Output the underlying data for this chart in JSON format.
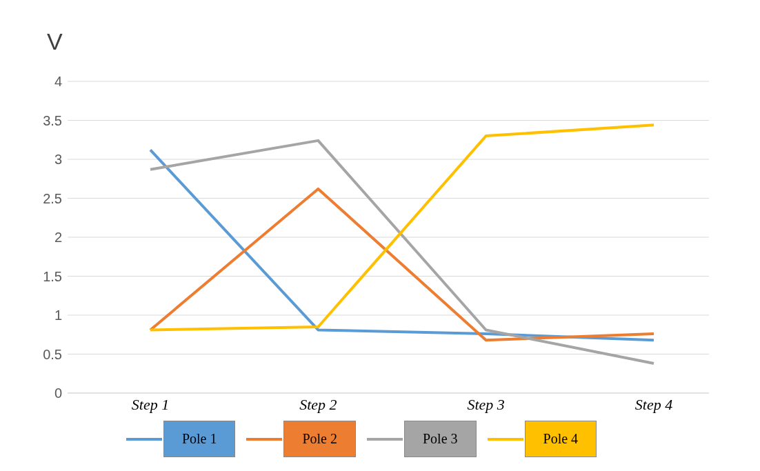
{
  "chart_data": {
    "type": "line",
    "ylabel": "V",
    "categories": [
      "Step 1",
      "Step 2",
      "Step 3",
      "Step 4"
    ],
    "series": [
      {
        "name": "Pole 1",
        "color": "#5b9bd5",
        "values": [
          3.12,
          0.81,
          0.76,
          0.68
        ]
      },
      {
        "name": "Pole 2",
        "color": "#ed7d31",
        "values": [
          0.81,
          2.62,
          0.68,
          0.76
        ]
      },
      {
        "name": "Pole 3",
        "color": "#a5a5a5",
        "values": [
          2.87,
          3.24,
          0.81,
          0.38
        ]
      },
      {
        "name": "Pole 4",
        "color": "#ffc000",
        "values": [
          0.81,
          0.85,
          3.3,
          3.44
        ]
      }
    ],
    "ylim": [
      0,
      4
    ],
    "yticks": [
      0,
      0.5,
      1,
      1.5,
      2,
      2.5,
      3,
      3.5,
      4
    ],
    "grid": "y",
    "legend": "bottom",
    "marker": "none",
    "line_style": "solid"
  }
}
